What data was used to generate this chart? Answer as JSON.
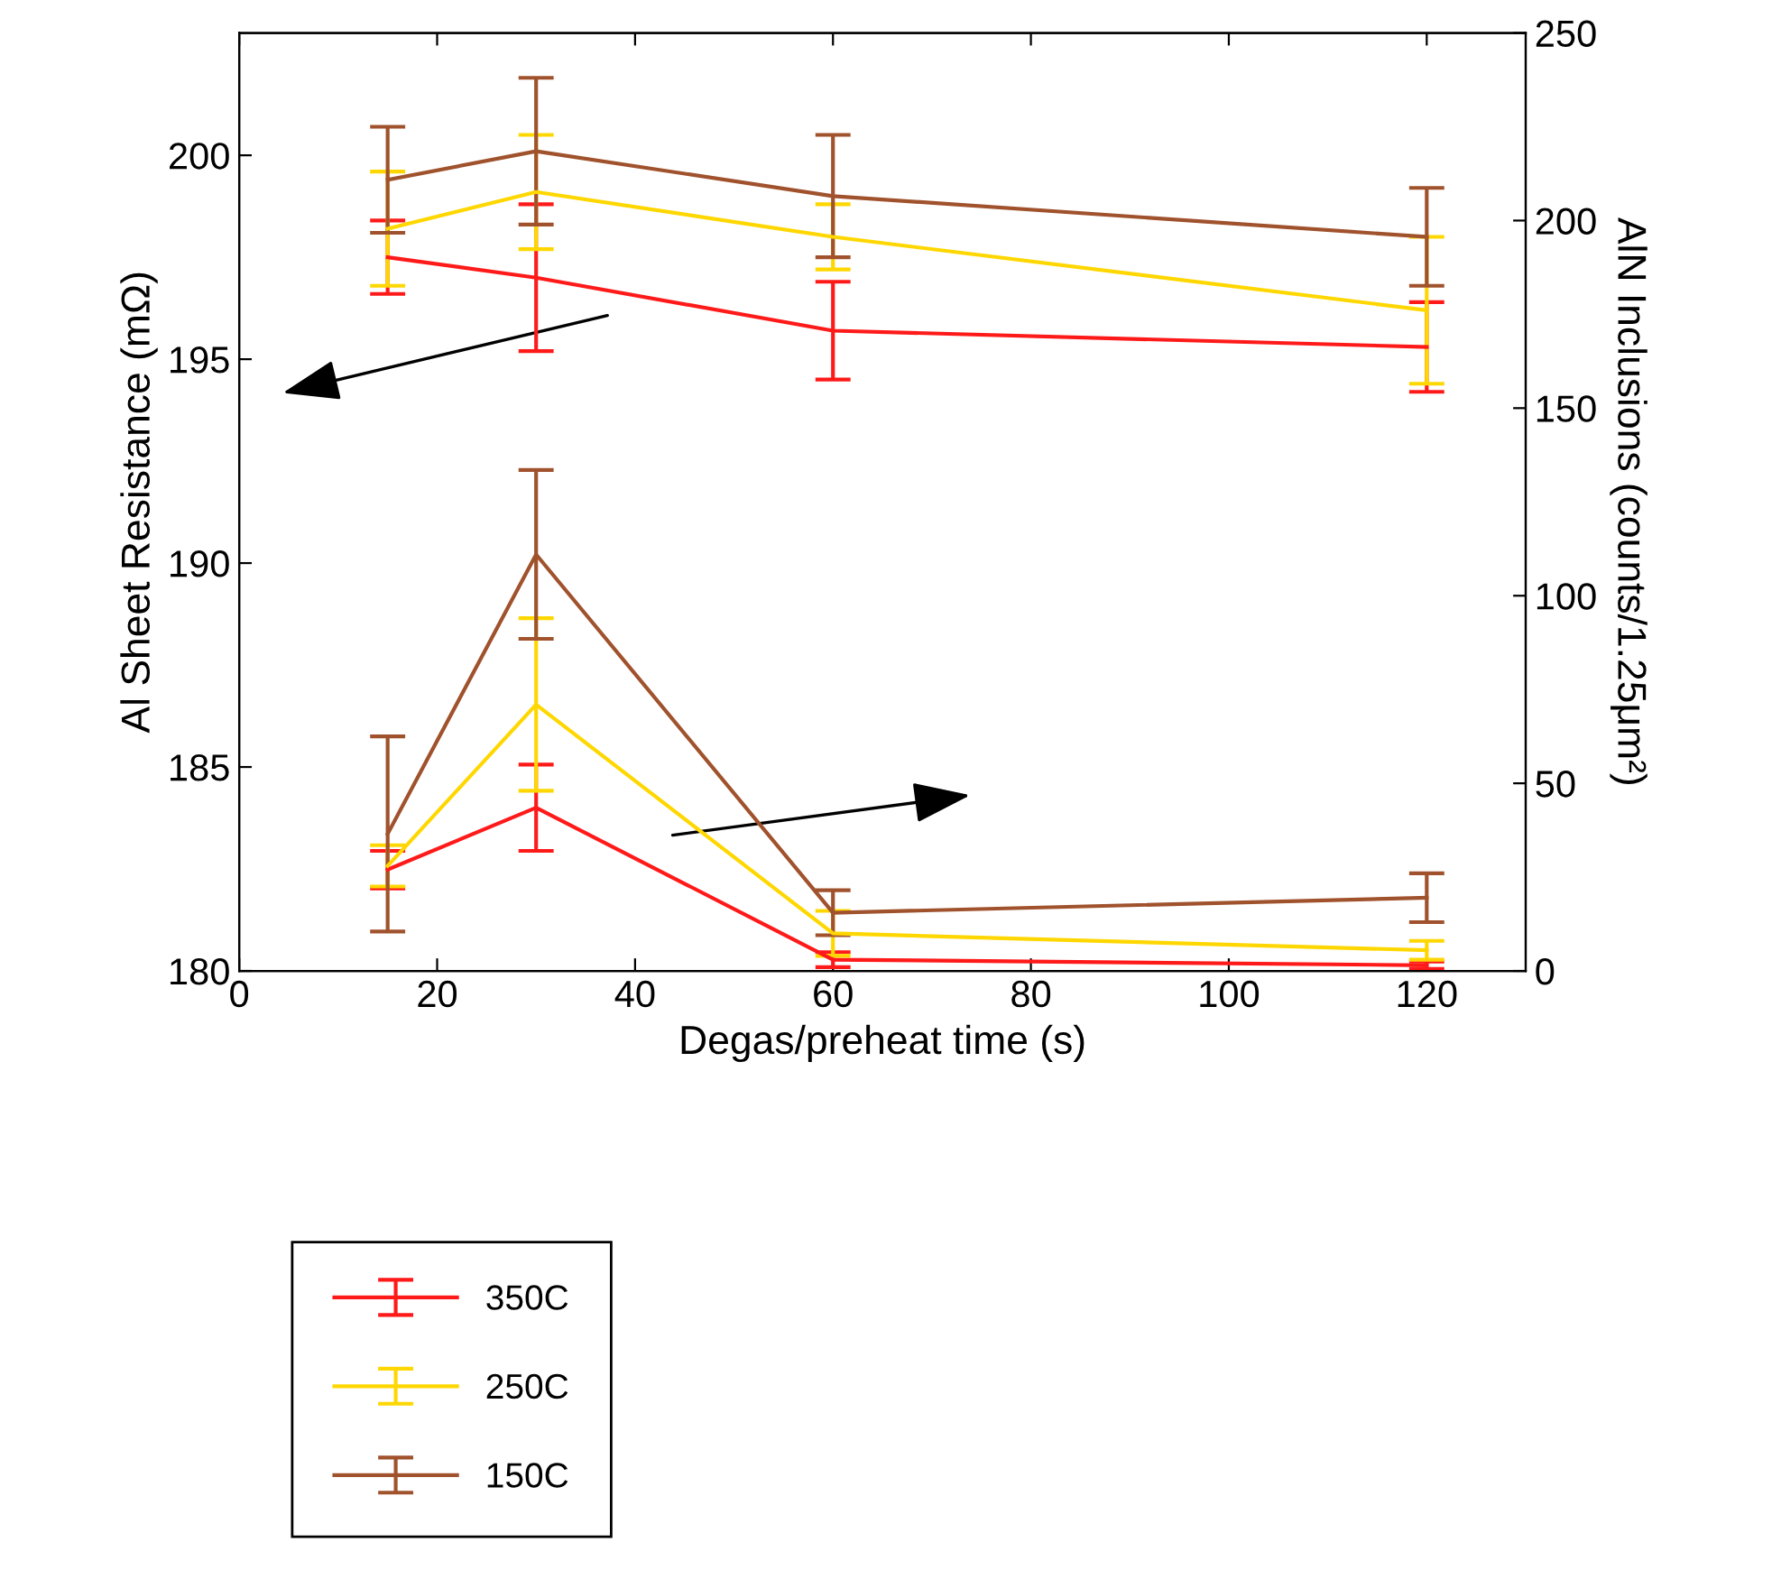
{
  "chart_data": {
    "type": "line",
    "xlabel": "Degas/preheat time (s)",
    "ylabel": "Al Sheet Resistance (mΩ)",
    "y2label": "AlN Inclusions (counts/1.25μm²)",
    "x": [
      15,
      30,
      60,
      120
    ],
    "xlim": [
      0,
      130
    ],
    "xticks": [
      0,
      20,
      40,
      60,
      80,
      100,
      120
    ],
    "ylim": [
      180,
      203
    ],
    "yticks": [
      180,
      185,
      190,
      195,
      200
    ],
    "y2lim": [
      0,
      250
    ],
    "y2ticks": [
      0,
      50,
      100,
      150,
      200,
      250
    ],
    "grid": false,
    "legend": "bottom left",
    "marker": "none",
    "line_style": "solid",
    "series": [
      {
        "name": "350C",
        "color": "#ff1a1a",
        "values": [
          197.5,
          197.0,
          195.7,
          195.3
        ],
        "errors": [
          0.9,
          1.8,
          1.2,
          1.1
        ]
      },
      {
        "name": "250C",
        "color": "#ffd700",
        "values": [
          198.2,
          199.1,
          198.0,
          196.2
        ],
        "errors": [
          1.4,
          1.4,
          0.8,
          1.8
        ]
      },
      {
        "name": "150C",
        "color": "#a0522d",
        "values": [
          199.4,
          200.1,
          199.0,
          198.0
        ],
        "errors": [
          1.3,
          1.8,
          1.5,
          1.2
        ]
      },
      {
        "axis": "y2",
        "color": "#ff1a1a",
        "values": [
          27,
          43.5,
          3,
          1.5
        ],
        "errors": [
          5,
          11.5,
          2,
          1
        ]
      },
      {
        "axis": "y2",
        "color": "#ffd700",
        "values": [
          28,
          71,
          10,
          5.5
        ],
        "errors": [
          5.5,
          23,
          6,
          2.5
        ]
      },
      {
        "axis": "y2",
        "color": "#a0522d",
        "values": [
          36.5,
          111,
          15.5,
          19.5
        ],
        "errors": [
          26,
          22.5,
          6,
          6.5
        ]
      }
    ]
  }
}
